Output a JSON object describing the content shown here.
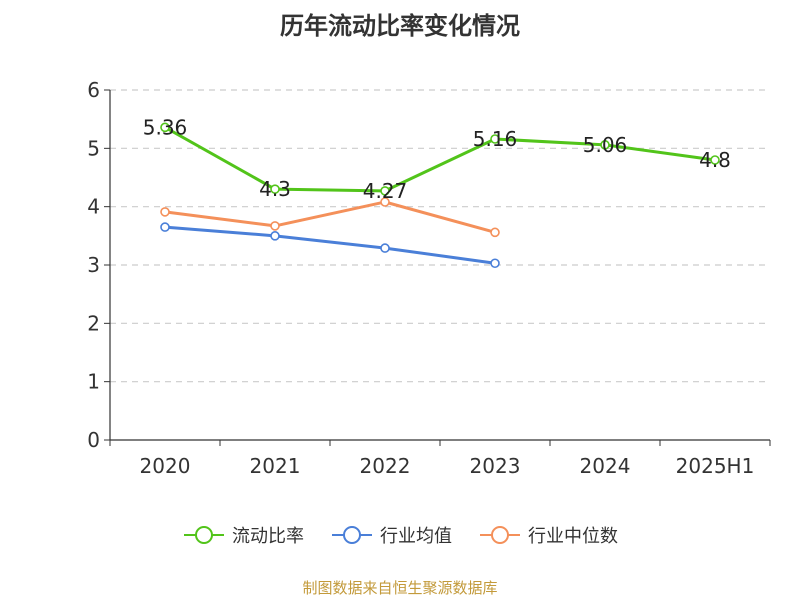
{
  "chart_data": {
    "type": "line",
    "title": "历年流动比率变化情况",
    "categories": [
      "2020",
      "2021",
      "2022",
      "2023",
      "2024",
      "2025H1"
    ],
    "ylim": [
      0,
      6
    ],
    "yticks": [
      "0",
      "1",
      "2",
      "3",
      "4",
      "5",
      "6"
    ],
    "grid": true,
    "legend_position": "bottom",
    "series": [
      {
        "name": "流动比率",
        "color": "#52c41a",
        "values": [
          5.36,
          4.3,
          4.27,
          5.16,
          5.06,
          4.8
        ],
        "labels": [
          "5.36",
          "4.3",
          "4.27",
          "5.16",
          "5.06",
          "4.8"
        ]
      },
      {
        "name": "行业均值",
        "color": "#4a7fd8",
        "values": [
          3.65,
          3.5,
          3.29,
          3.03,
          null,
          null
        ]
      },
      {
        "name": "行业中位数",
        "color": "#f4905a",
        "values": [
          3.91,
          3.67,
          4.08,
          3.56,
          null,
          null
        ]
      }
    ]
  },
  "source_note": "制图数据来自恒生聚源数据库"
}
